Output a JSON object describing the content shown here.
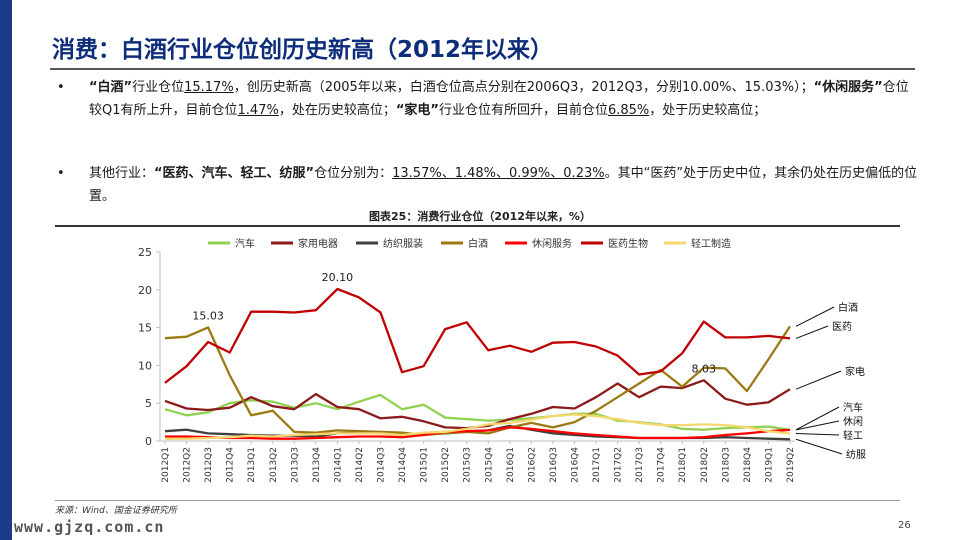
{
  "header": {
    "title": "消费：白酒行业仓位创历史新高（2012年以来）"
  },
  "bullets": [
    {
      "symbol": "•",
      "parts": [
        {
          "t": "“白酒”",
          "s": "q"
        },
        {
          "t": "行业仓位",
          "s": ""
        },
        {
          "t": "15.17%",
          "s": "u"
        },
        {
          "t": "，创历史新高（2005年以来，白酒仓位高点分别在2006Q3，2012Q3，分别10.00%、15.03%）；",
          "s": ""
        },
        {
          "t": "“休闲服务”",
          "s": "q"
        },
        {
          "t": "仓位较Q1有所上升，目前仓位",
          "s": ""
        },
        {
          "t": "1.47%",
          "s": "u"
        },
        {
          "t": "，处在历史较高位；",
          "s": ""
        },
        {
          "t": "“家电”",
          "s": "q"
        },
        {
          "t": "行业仓位有所回升，目前仓位",
          "s": ""
        },
        {
          "t": "6.85%",
          "s": "u"
        },
        {
          "t": "，处于历史较高位；",
          "s": ""
        }
      ]
    },
    {
      "symbol": "•",
      "parts": [
        {
          "t": "其他行业：",
          "s": ""
        },
        {
          "t": "“医药、汽车、轻工、纺服”",
          "s": "q"
        },
        {
          "t": "仓位分别为：",
          "s": ""
        },
        {
          "t": "13.57%、1.48%、0.99%、0.23%",
          "s": "u"
        },
        {
          "t": "。其中“医药”处于历史中位，其余仍处在历史偏低的位置。",
          "s": ""
        }
      ]
    }
  ],
  "figure": {
    "title": "图表25：消费行业仓位（2012年以来，%）"
  },
  "source": "来源：Wind、国金证券研究所",
  "watermark": "www.gjzq.com.cn",
  "page_number": "26",
  "chart_data": {
    "type": "line",
    "x": [
      "2012Q1",
      "2012Q2",
      "2012Q3",
      "2012Q4",
      "2013Q1",
      "2013Q2",
      "2013Q3",
      "2013Q4",
      "2014Q1",
      "2014Q2",
      "2014Q3",
      "2014Q4",
      "2015Q1",
      "2015Q2",
      "2015Q3",
      "2015Q4",
      "2016Q1",
      "2016Q2",
      "2016Q3",
      "2016Q4",
      "2017Q1",
      "2017Q2",
      "2017Q3",
      "2017Q4",
      "2018Q1",
      "2018Q2",
      "2018Q3",
      "2018Q4",
      "2019Q1",
      "2019Q2"
    ],
    "ylim": [
      0,
      25
    ],
    "yticks": [
      0,
      5,
      10,
      15,
      20,
      25
    ],
    "legend_position": "top",
    "grid": false,
    "series": [
      {
        "name": "汽车",
        "color": "#92d050",
        "values": [
          4.2,
          3.4,
          3.8,
          5.0,
          5.4,
          5.2,
          4.4,
          5.0,
          4.2,
          5.2,
          6.1,
          4.2,
          4.8,
          3.1,
          2.9,
          2.7,
          2.8,
          3.0,
          3.3,
          3.6,
          3.6,
          2.7,
          2.5,
          2.2,
          1.6,
          1.5,
          1.7,
          1.8,
          1.9,
          1.48
        ]
      },
      {
        "name": "家用电器",
        "color": "#8b1a1a",
        "values": [
          5.3,
          4.3,
          4.1,
          4.4,
          5.8,
          4.6,
          4.2,
          6.2,
          4.5,
          4.2,
          3.0,
          3.2,
          2.6,
          1.8,
          1.7,
          2.0,
          2.9,
          3.6,
          4.5,
          4.3,
          5.8,
          7.6,
          5.8,
          7.2,
          7.0,
          8.03,
          5.6,
          4.8,
          5.1,
          6.85
        ]
      },
      {
        "name": "纺织服装",
        "color": "#404040",
        "values": [
          1.3,
          1.5,
          1.0,
          0.9,
          0.8,
          0.7,
          0.7,
          0.6,
          1.0,
          1.1,
          1.1,
          0.9,
          0.9,
          1.0,
          1.2,
          1.4,
          2.0,
          1.5,
          1.0,
          0.8,
          0.6,
          0.5,
          0.4,
          0.4,
          0.4,
          0.4,
          0.5,
          0.4,
          0.3,
          0.23
        ]
      },
      {
        "name": "白酒",
        "color": "#9c7a12",
        "values": [
          13.6,
          13.8,
          15.03,
          8.7,
          3.4,
          4.0,
          1.2,
          1.1,
          1.4,
          1.3,
          1.2,
          1.1,
          0.8,
          1.0,
          1.2,
          1.0,
          1.8,
          2.4,
          1.8,
          2.5,
          4.0,
          5.8,
          7.6,
          9.4,
          7.2,
          9.7,
          9.6,
          6.6,
          10.8,
          15.17
        ]
      },
      {
        "name": "休闲服务",
        "color": "#ff0000",
        "values": [
          0.6,
          0.6,
          0.5,
          0.4,
          0.4,
          0.3,
          0.3,
          0.4,
          0.5,
          0.6,
          0.6,
          0.5,
          0.8,
          1.2,
          1.3,
          1.4,
          1.8,
          1.6,
          1.3,
          1.0,
          0.8,
          0.6,
          0.4,
          0.4,
          0.4,
          0.5,
          0.8,
          1.0,
          1.3,
          1.47
        ]
      },
      {
        "name": "医药生物",
        "color": "#c00000",
        "values": [
          7.7,
          9.9,
          13.1,
          11.7,
          17.1,
          17.1,
          17.0,
          17.3,
          20.1,
          19.0,
          17.0,
          9.1,
          9.9,
          14.8,
          15.7,
          12.0,
          12.6,
          11.8,
          13.0,
          13.1,
          12.5,
          11.3,
          8.8,
          9.2,
          11.6,
          15.8,
          13.7,
          13.7,
          13.9,
          13.57
        ]
      },
      {
        "name": "轻工制造",
        "color": "#f5d76e",
        "values": [
          0.3,
          0.3,
          0.4,
          0.5,
          0.7,
          0.6,
          0.8,
          0.9,
          1.0,
          1.0,
          1.0,
          0.8,
          1.1,
          1.2,
          1.6,
          2.2,
          2.4,
          2.8,
          3.3,
          3.5,
          3.3,
          2.9,
          2.4,
          2.1,
          2.1,
          2.2,
          2.1,
          1.8,
          1.3,
          0.99
        ]
      }
    ],
    "data_labels": [
      {
        "series": 3,
        "index": 2,
        "text": "15.03"
      },
      {
        "series": 5,
        "index": 8,
        "text": "20.10"
      },
      {
        "series": 1,
        "index": 25,
        "text": "8.03"
      }
    ],
    "end_labels": [
      {
        "series": 3,
        "text": "白酒"
      },
      {
        "series": 5,
        "text": "医药"
      },
      {
        "series": 1,
        "text": "家电"
      },
      {
        "series": 0,
        "text": "汽车"
      },
      {
        "series": 4,
        "text": "休闲"
      },
      {
        "series": 6,
        "text": "轻工"
      },
      {
        "series": 2,
        "text": "纺服"
      }
    ]
  }
}
